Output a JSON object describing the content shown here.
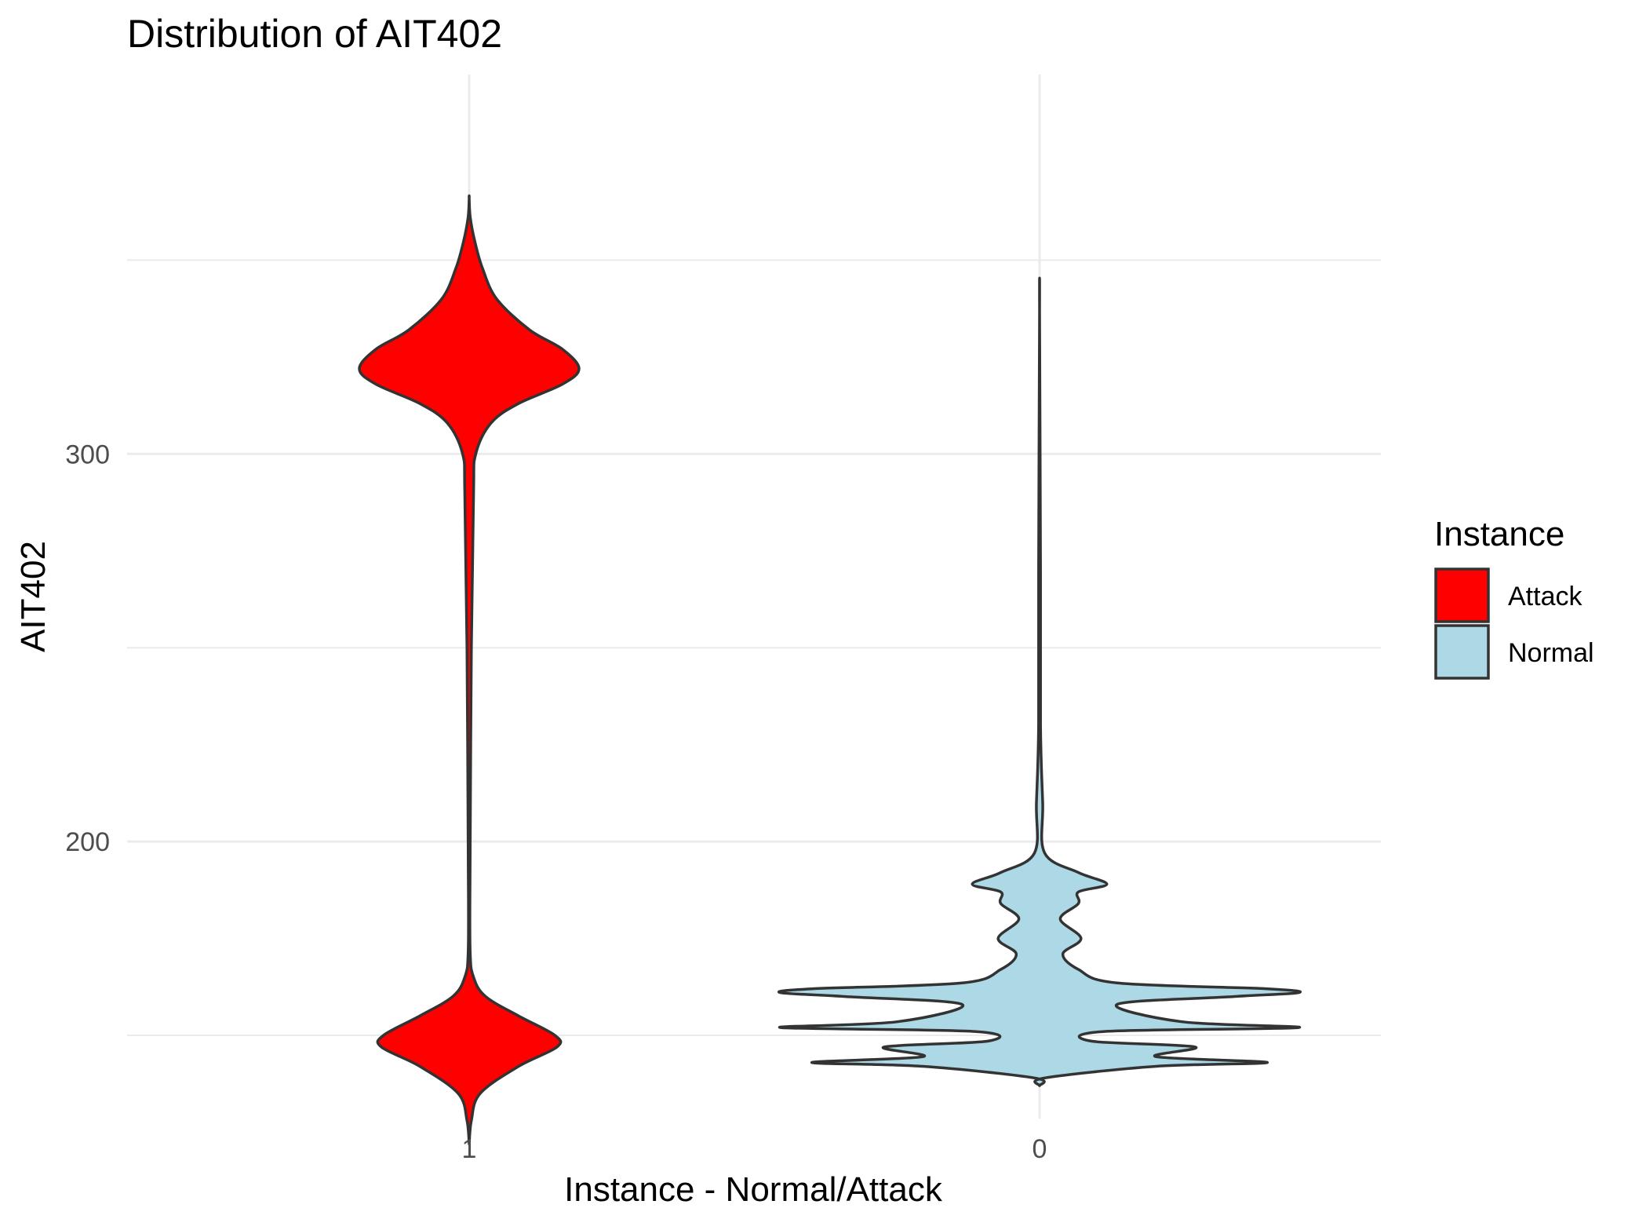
{
  "chart_data": {
    "type": "violin",
    "title": "Distribution of AIT402",
    "xlabel": "Instance - Normal/Attack",
    "ylabel": "AIT402",
    "x_categories": [
      "1",
      "0"
    ],
    "y_ticks": [
      200,
      300
    ],
    "ylim": [
      115,
      380
    ],
    "grid": true,
    "legend": {
      "title": "Instance",
      "position": "right",
      "entries": [
        {
          "label": "Attack",
          "color": "#ff0000"
        },
        {
          "label": "Normal",
          "color": "#add8e6"
        }
      ]
    },
    "series": [
      {
        "group": "Attack",
        "x": "1",
        "color": "#ff0000",
        "y_min": 122,
        "y_max": 366,
        "density_profile": [
          [
            122,
            0.0
          ],
          [
            128,
            0.02
          ],
          [
            135,
            0.1
          ],
          [
            142,
            0.45
          ],
          [
            147,
            0.8
          ],
          [
            150,
            0.78
          ],
          [
            155,
            0.45
          ],
          [
            160,
            0.15
          ],
          [
            165,
            0.04
          ],
          [
            172,
            0.0
          ],
          [
            195,
            0.0
          ],
          [
            250,
            0.02
          ],
          [
            290,
            0.04
          ],
          [
            300,
            0.06
          ],
          [
            308,
            0.2
          ],
          [
            313,
            0.45
          ],
          [
            318,
            0.85
          ],
          [
            322,
            1.0
          ],
          [
            327,
            0.85
          ],
          [
            332,
            0.55
          ],
          [
            340,
            0.25
          ],
          [
            348,
            0.12
          ],
          [
            355,
            0.05
          ],
          [
            361,
            0.01
          ],
          [
            366,
            0.0
          ]
        ]
      },
      {
        "group": "Normal",
        "x": "0",
        "color": "#add8e6",
        "y_min": 137,
        "y_max": 337,
        "density_profile": [
          [
            137,
            0.0
          ],
          [
            139,
            0.02
          ],
          [
            142,
            0.45
          ],
          [
            143,
            0.88
          ],
          [
            144.5,
            0.45
          ],
          [
            147,
            0.6
          ],
          [
            148.5,
            0.2
          ],
          [
            151,
            0.25
          ],
          [
            152,
            1.0
          ],
          [
            153.5,
            0.55
          ],
          [
            158,
            0.3
          ],
          [
            160,
            0.75
          ],
          [
            161,
            1.0
          ],
          [
            162,
            0.88
          ],
          [
            163.5,
            0.3
          ],
          [
            167,
            0.15
          ],
          [
            171,
            0.09
          ],
          [
            175,
            0.16
          ],
          [
            180,
            0.08
          ],
          [
            184,
            0.15
          ],
          [
            187,
            0.15
          ],
          [
            189,
            0.26
          ],
          [
            192,
            0.15
          ],
          [
            197,
            0.02
          ],
          [
            210,
            0.012
          ],
          [
            230,
            0.003
          ],
          [
            270,
            0.0015
          ],
          [
            337,
            0.0
          ]
        ]
      }
    ]
  }
}
